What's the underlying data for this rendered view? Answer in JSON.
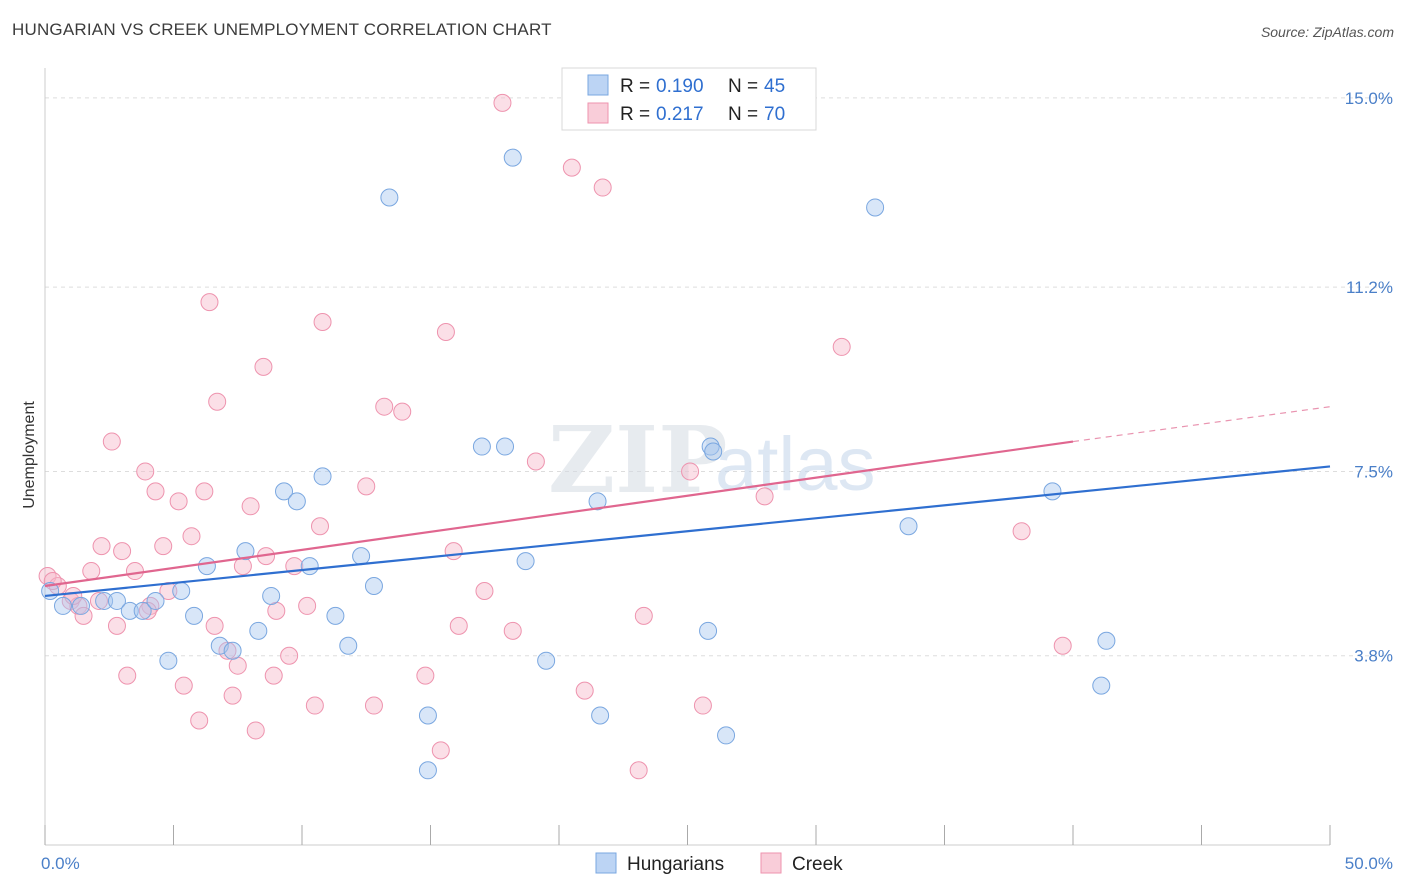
{
  "title": "HUNGARIAN VS CREEK UNEMPLOYMENT CORRELATION CHART",
  "source": "Source: ZipAtlas.com",
  "watermark": {
    "zip": "ZIP",
    "atlas": "atlas"
  },
  "legend_top": [
    {
      "r_label": "R = ",
      "r_value": "0.190",
      "n_label": "N = ",
      "n_value": "45"
    },
    {
      "r_label": "R = ",
      "r_value": "0.217",
      "n_label": "N = ",
      "n_value": "70"
    }
  ],
  "legend_bottom": [
    "Hungarians",
    "Creek"
  ],
  "colors": {
    "blue_fill": "#a8c8f0",
    "blue_stroke": "#7aa7e0",
    "blue_line": "#2f6fd0",
    "pink_fill": "#f7b8ca",
    "pink_stroke": "#ee93ae",
    "pink_line": "#e0668f",
    "tick_text": "#4a7fc8",
    "grid": "#dddddd"
  },
  "chart_data": {
    "type": "scatter",
    "title": "HUNGARIAN VS CREEK UNEMPLOYMENT CORRELATION CHART",
    "xlabel": "",
    "ylabel": "Unemployment",
    "xlim": [
      0,
      50
    ],
    "ylim": [
      0,
      15.6
    ],
    "x_tick_labels": [
      "0.0%",
      "50.0%"
    ],
    "y_ticks": [
      3.8,
      7.5,
      11.2,
      15.0
    ],
    "y_tick_labels": [
      "3.8%",
      "7.5%",
      "11.2%",
      "15.0%"
    ],
    "grid": true,
    "legend_position": "top-center",
    "series": [
      {
        "name": "Hungarians",
        "r": 0.19,
        "n": 45,
        "trend": {
          "x": [
            0,
            50
          ],
          "y": [
            5.0,
            7.6
          ]
        },
        "points": [
          [
            0.2,
            5.1
          ],
          [
            0.7,
            4.8
          ],
          [
            1.4,
            4.8
          ],
          [
            2.3,
            4.9
          ],
          [
            2.8,
            4.9
          ],
          [
            3.3,
            4.7
          ],
          [
            3.8,
            4.7
          ],
          [
            4.3,
            4.9
          ],
          [
            4.8,
            3.7
          ],
          [
            5.3,
            5.1
          ],
          [
            5.8,
            4.6
          ],
          [
            6.3,
            5.6
          ],
          [
            6.8,
            4.0
          ],
          [
            7.3,
            3.9
          ],
          [
            7.8,
            5.9
          ],
          [
            8.3,
            4.3
          ],
          [
            8.8,
            5.0
          ],
          [
            9.3,
            7.1
          ],
          [
            9.8,
            6.9
          ],
          [
            10.3,
            5.6
          ],
          [
            10.8,
            7.4
          ],
          [
            11.3,
            4.6
          ],
          [
            11.8,
            4.0
          ],
          [
            12.3,
            5.8
          ],
          [
            12.8,
            5.2
          ],
          [
            13.4,
            13.0
          ],
          [
            14.9,
            2.6
          ],
          [
            14.9,
            1.5
          ],
          [
            17.0,
            8.0
          ],
          [
            17.9,
            8.0
          ],
          [
            18.2,
            13.8
          ],
          [
            18.7,
            5.7
          ],
          [
            19.5,
            3.7
          ],
          [
            21.5,
            6.9
          ],
          [
            21.6,
            2.6
          ],
          [
            24.4,
            15.3
          ],
          [
            25.8,
            4.3
          ],
          [
            25.9,
            8.0
          ],
          [
            26.0,
            7.9
          ],
          [
            26.5,
            2.2
          ],
          [
            32.3,
            12.8
          ],
          [
            33.6,
            6.4
          ],
          [
            39.2,
            7.1
          ],
          [
            41.1,
            3.2
          ],
          [
            41.3,
            4.1
          ]
        ]
      },
      {
        "name": "Creek",
        "r": 0.217,
        "n": 70,
        "trend": {
          "x": [
            0,
            40
          ],
          "y": [
            5.2,
            8.1
          ]
        },
        "trend_dashed": {
          "x": [
            40,
            50
          ],
          "y": [
            8.1,
            8.8
          ]
        },
        "points": [
          [
            0.1,
            5.4
          ],
          [
            0.5,
            5.2
          ],
          [
            1.0,
            4.9
          ],
          [
            1.3,
            4.8
          ],
          [
            1.5,
            4.6
          ],
          [
            1.8,
            5.5
          ],
          [
            2.1,
            4.9
          ],
          [
            2.2,
            6.0
          ],
          [
            2.6,
            8.1
          ],
          [
            2.8,
            4.4
          ],
          [
            3.0,
            5.9
          ],
          [
            3.2,
            3.4
          ],
          [
            3.5,
            5.5
          ],
          [
            3.9,
            7.5
          ],
          [
            4.1,
            4.8
          ],
          [
            4.3,
            7.1
          ],
          [
            4.6,
            6.0
          ],
          [
            4.8,
            5.1
          ],
          [
            5.2,
            6.9
          ],
          [
            5.4,
            3.2
          ],
          [
            5.7,
            6.2
          ],
          [
            6.0,
            2.5
          ],
          [
            6.2,
            7.1
          ],
          [
            6.4,
            10.9
          ],
          [
            6.6,
            4.4
          ],
          [
            6.7,
            8.9
          ],
          [
            7.1,
            3.9
          ],
          [
            7.3,
            3.0
          ],
          [
            7.5,
            3.6
          ],
          [
            7.7,
            5.6
          ],
          [
            8.0,
            6.8
          ],
          [
            8.2,
            2.3
          ],
          [
            8.5,
            9.6
          ],
          [
            8.6,
            5.8
          ],
          [
            8.9,
            3.4
          ],
          [
            9.0,
            4.7
          ],
          [
            9.5,
            3.8
          ],
          [
            9.7,
            5.6
          ],
          [
            10.2,
            4.8
          ],
          [
            10.5,
            2.8
          ],
          [
            10.7,
            6.4
          ],
          [
            10.8,
            10.5
          ],
          [
            12.5,
            7.2
          ],
          [
            12.8,
            2.8
          ],
          [
            13.2,
            8.8
          ],
          [
            13.9,
            8.7
          ],
          [
            14.8,
            3.4
          ],
          [
            15.4,
            1.9
          ],
          [
            15.6,
            10.3
          ],
          [
            15.9,
            5.9
          ],
          [
            16.1,
            4.4
          ],
          [
            17.1,
            5.1
          ],
          [
            17.8,
            14.9
          ],
          [
            18.2,
            4.3
          ],
          [
            19.1,
            7.7
          ],
          [
            20.5,
            13.6
          ],
          [
            21.0,
            3.1
          ],
          [
            21.7,
            13.2
          ],
          [
            22.9,
            15.2
          ],
          [
            23.1,
            1.5
          ],
          [
            23.3,
            4.6
          ],
          [
            25.1,
            7.5
          ],
          [
            25.6,
            2.8
          ],
          [
            28.0,
            7.0
          ],
          [
            31.0,
            10.0
          ],
          [
            38.0,
            6.3
          ],
          [
            39.6,
            4.0
          ],
          [
            0.3,
            5.3
          ],
          [
            1.1,
            5.0
          ],
          [
            4.0,
            4.7
          ]
        ]
      }
    ]
  }
}
